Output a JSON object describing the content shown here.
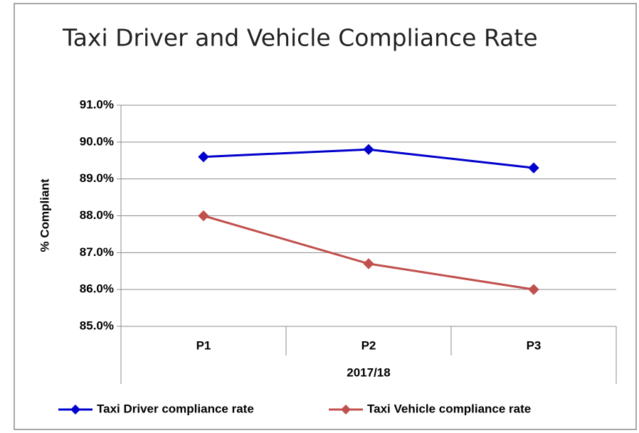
{
  "chart_data": {
    "type": "line",
    "title": "Taxi Driver and Vehicle Compliance Rate",
    "ylabel": "% Compliant",
    "xlabel": "2017/18",
    "categories": [
      "P1",
      "P2",
      "P3"
    ],
    "series": [
      {
        "name": "Taxi Driver compliance rate",
        "color": "#0000cc",
        "values": [
          89.6,
          89.8,
          89.3
        ]
      },
      {
        "name": "Taxi Vehicle compliance rate",
        "color": "#c0504d",
        "values": [
          88.0,
          86.7,
          86.0
        ]
      }
    ],
    "ylim": [
      85,
      91
    ],
    "yticks": [
      {
        "value": 85,
        "label": "85.0%"
      },
      {
        "value": 86,
        "label": "86.0%"
      },
      {
        "value": 87,
        "label": "87.0%"
      },
      {
        "value": 88,
        "label": "88.0%"
      },
      {
        "value": 89,
        "label": "89.0%"
      },
      {
        "value": 90,
        "label": "90.0%"
      },
      {
        "value": 91,
        "label": "91.0%"
      }
    ],
    "grid": true,
    "legend": "bottom"
  }
}
